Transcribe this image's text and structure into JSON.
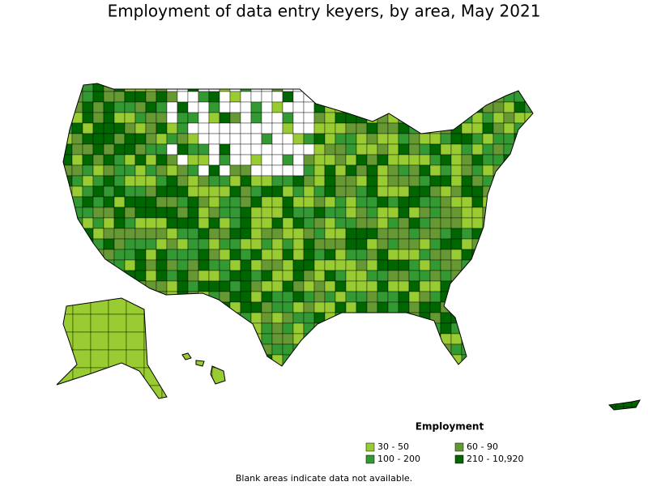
{
  "header": {
    "title": "Employment of data entry keyers, by area, May 2021"
  },
  "legend": {
    "title": "Employment",
    "items": [
      {
        "label": "30 - 50",
        "color": "#99cc33"
      },
      {
        "label": "60 - 90",
        "color": "#669933"
      },
      {
        "label": "100 - 200",
        "color": "#339933"
      },
      {
        "label": "210 - 10,920",
        "color": "#006600"
      }
    ]
  },
  "footnote": "Blank areas indicate data not available."
}
